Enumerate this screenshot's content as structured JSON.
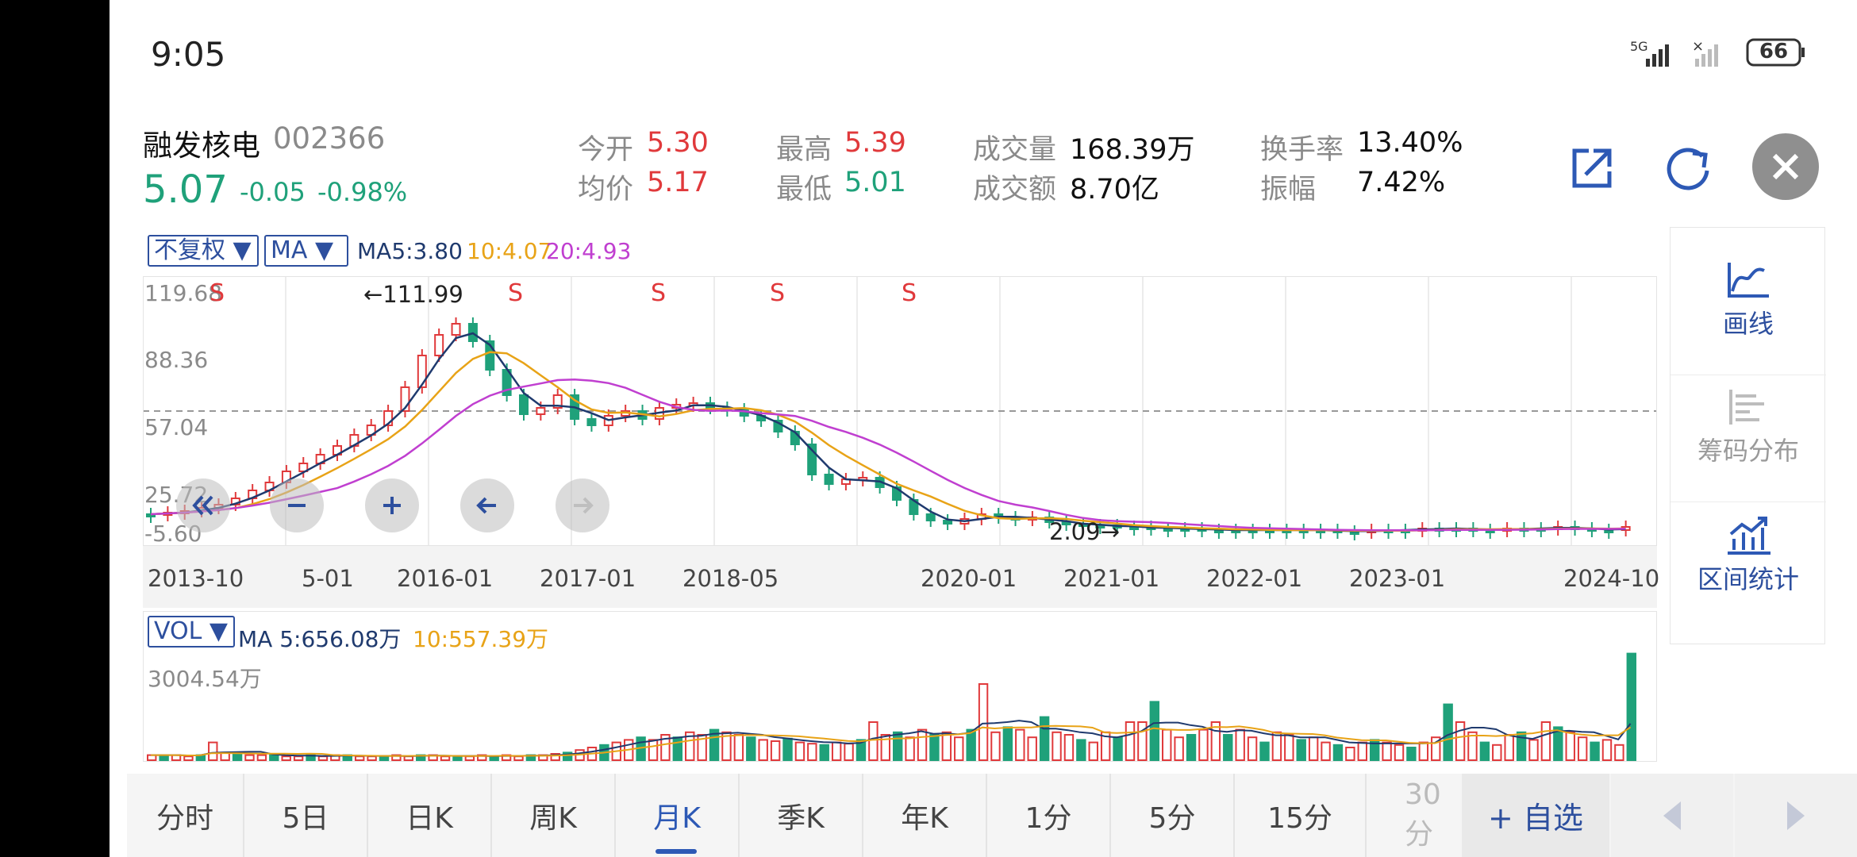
{
  "status_bar": {
    "time": "9:05",
    "signal": "5G",
    "battery": "66"
  },
  "stock": {
    "name": "融发核电",
    "code": "002366",
    "price": "5.07",
    "change": "-0.05",
    "change_pct": "-0.98%"
  },
  "quote": {
    "open_label": "今开",
    "open": "5.30",
    "high_label": "最高",
    "high": "5.39",
    "vol_label": "成交量",
    "vol": "168.39万",
    "turnover_label": "换手率",
    "turnover": "13.40%",
    "avg_label": "均价",
    "avg": "5.17",
    "low_label": "最低",
    "low": "5.01",
    "amount_label": "成交额",
    "amount": "8.70亿",
    "amp_label": "振幅",
    "amp": "7.42%"
  },
  "toolbar": {
    "adjust": "不复权 ▼",
    "indicator": "MA ▼",
    "ma5": "MA5:3.80",
    "ma10": "10:4.07",
    "ma20": "20:4.93"
  },
  "chart": {
    "y_ticks": [
      "119.68",
      "88.36",
      "57.04",
      "25.72",
      "-5.60"
    ],
    "max_label": "←111.99",
    "min_label": "2.09→",
    "s_marker": "S",
    "dates": [
      "2013-10",
      "5-01",
      "2016-01",
      "2017-01",
      "2018-05",
      "2020-01",
      "2021-01",
      "2022-01",
      "2023-01",
      "2024-10"
    ]
  },
  "volume": {
    "indicator": "VOL ▼",
    "ma5": "MA 5:656.08万",
    "ma10": "10:557.39万",
    "max": "3004.54万"
  },
  "side": {
    "draw": "画线",
    "chips": "筹码分布",
    "range_stats": "区间统计"
  },
  "tabs": [
    "分时",
    "5日",
    "日K",
    "周K",
    "月K",
    "季K",
    "年K",
    "1分",
    "5分",
    "15分",
    "30分"
  ],
  "add_watch": "+ 自选",
  "colors": {
    "up": "#e0393b",
    "down": "#1fa17a",
    "ma5": "#1f3a6e",
    "ma10": "#e8a317",
    "ma20": "#c03fd0",
    "accent": "#2d59b5"
  }
}
